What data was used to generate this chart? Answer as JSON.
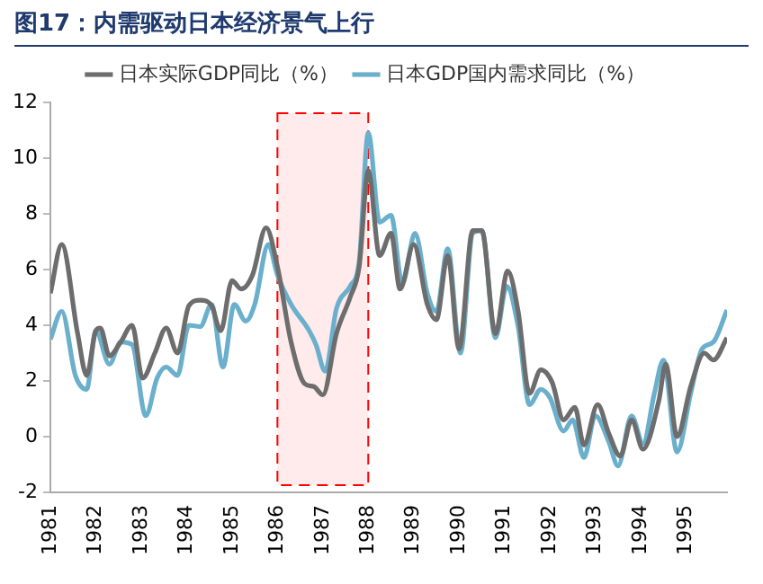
{
  "chart_data": {
    "type": "line",
    "title": "图17：内需驱动日本经济景气上行",
    "xlim": [
      1981,
      1995.9
    ],
    "xticks": [
      1981,
      1982,
      1983,
      1984,
      1985,
      1986,
      1987,
      1988,
      1989,
      1990,
      1991,
      1992,
      1993,
      1994,
      1995
    ],
    "ylim": [
      -2,
      12
    ],
    "yticks": [
      -2,
      0,
      2,
      4,
      6,
      8,
      10,
      12
    ],
    "grid": false,
    "legend": "top",
    "marker": "none",
    "line_style": "solid",
    "bands": [
      {
        "axis": "x",
        "from": 1986,
        "to": 1988,
        "label": null,
        "color": "#ff0000"
      }
    ],
    "series": [
      {
        "name": "日本实际GDP同比（%）",
        "color": "#6d6d6d",
        "x": [
          1981,
          1981.25,
          1981.6,
          1981.8,
          1982,
          1982.1,
          1982.3,
          1982.55,
          1982.8,
          1983.03,
          1983.3,
          1983.55,
          1983.8,
          1984.05,
          1984.3,
          1984.55,
          1984.75,
          1985,
          1985.2,
          1985.45,
          1985.75,
          1986,
          1986.3,
          1986.6,
          1986.8,
          1987,
          1987.3,
          1987.6,
          1987.8,
          1988,
          1988.25,
          1988.5,
          1988.7,
          1989,
          1989.3,
          1989.5,
          1989.75,
          1990,
          1990.3,
          1990.5,
          1990.8,
          1991.07,
          1991.3,
          1991.55,
          1991.8,
          1992.05,
          1992.3,
          1992.55,
          1992.75,
          1993.05,
          1993.3,
          1993.55,
          1993.8,
          1994.05,
          1994.4,
          1994.55,
          1994.8,
          1995.1,
          1995.4,
          1995.6,
          1995.9
        ],
        "values": [
          5.15,
          6.9,
          3.7,
          2.2,
          3.8,
          3.9,
          2.9,
          3.4,
          4.0,
          2.1,
          3.0,
          3.9,
          3.0,
          4.7,
          4.9,
          4.7,
          3.8,
          5.6,
          5.3,
          5.8,
          7.5,
          6.1,
          3.4,
          1.9,
          1.8,
          1.5,
          3.7,
          5.0,
          6.1,
          9.55,
          6.5,
          7.3,
          5.3,
          6.9,
          4.75,
          4.2,
          6.5,
          3.15,
          7.4,
          7.4,
          3.7,
          5.95,
          4.5,
          1.55,
          2.4,
          1.95,
          0.6,
          1.05,
          -0.3,
          1.15,
          0.1,
          -0.7,
          0.6,
          -0.45,
          1.3,
          2.6,
          0.0,
          1.8,
          3.0,
          2.75,
          3.55
        ]
      },
      {
        "name": "日本GDP国内需求同比（%）",
        "color": "#6ab0cc",
        "x": [
          1981,
          1981.25,
          1981.55,
          1981.8,
          1982,
          1982.3,
          1982.55,
          1982.8,
          1983.1,
          1983.35,
          1983.55,
          1983.8,
          1984.05,
          1984.3,
          1984.55,
          1984.8,
          1985.05,
          1985.3,
          1985.5,
          1985.8,
          1986,
          1986.3,
          1986.7,
          1986.85,
          1987.05,
          1987.3,
          1987.6,
          1987.8,
          1988,
          1988.25,
          1988.5,
          1988.75,
          1989.03,
          1989.3,
          1989.5,
          1989.75,
          1990.03,
          1990.3,
          1990.5,
          1990.8,
          1991.05,
          1991.3,
          1991.55,
          1991.8,
          1992,
          1992.3,
          1992.5,
          1992.75,
          1993,
          1993.3,
          1993.5,
          1993.8,
          1994.05,
          1994.3,
          1994.5,
          1994.8,
          1995.1,
          1995.35,
          1995.6,
          1995.9
        ],
        "values": [
          3.5,
          4.5,
          2.2,
          1.7,
          3.8,
          2.6,
          3.4,
          3.3,
          0.75,
          2.1,
          2.5,
          2.2,
          4.0,
          3.95,
          4.75,
          2.5,
          4.75,
          4.15,
          4.75,
          6.9,
          5.8,
          4.75,
          3.8,
          3.3,
          2.35,
          4.6,
          5.4,
          6.3,
          10.9,
          7.7,
          7.95,
          5.5,
          7.3,
          5.15,
          4.5,
          6.75,
          3.0,
          7.3,
          7.4,
          3.55,
          5.4,
          3.95,
          1.15,
          1.7,
          1.4,
          0.2,
          0.6,
          -0.75,
          0.75,
          -0.2,
          -1.05,
          0.75,
          -0.25,
          1.55,
          2.75,
          -0.55,
          1.55,
          3.15,
          3.4,
          4.55
        ]
      }
    ]
  }
}
